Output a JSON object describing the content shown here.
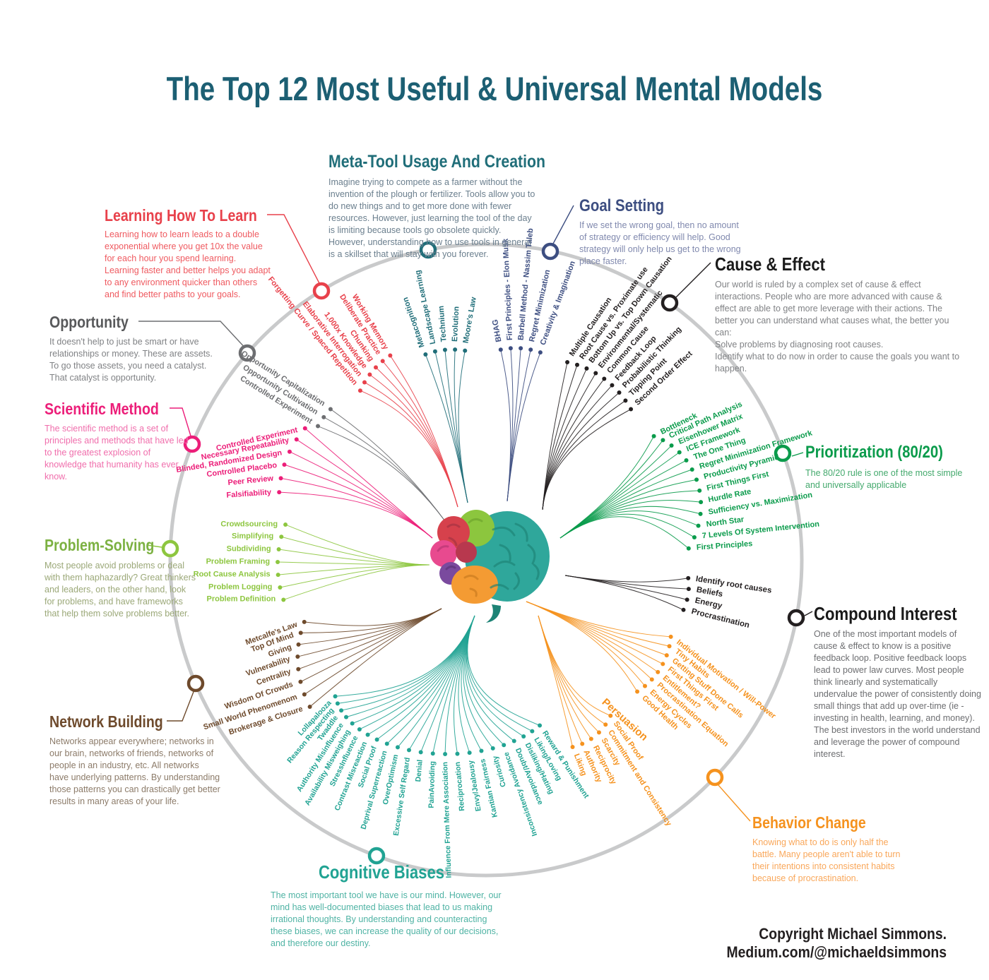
{
  "title": "The Top 12 Most Useful & Universal Mental Models",
  "copyright": "Copyright Michael Simmons. Medium.com/@michaeldsimmons",
  "categories": [
    {
      "id": "learning",
      "title": "Learning How To Learn",
      "color": "#E8414B",
      "title_color": "#E8414B",
      "desc_color": "#EF5A60",
      "description": "Learning how to learn leads to a double exponential where you get 10x the value for each hour you spend learning. Learning faster and better helps you adapt to any environment quicker than others and find better paths to your goals.",
      "items": [
        "Forgetting Curve / Spaced Repetition",
        "Elaborative Interrogation",
        "1,000x Knowledge",
        "Chunking",
        "Deliberate Practice",
        "Working Memory"
      ]
    },
    {
      "id": "opportunity",
      "title": "Opportunity",
      "color": "#6D6E71",
      "title_color": "#58595B",
      "desc_color": "#808285",
      "description": "It doesn't help to just be smart or have relationships or money. These are assets. To go those assets, you need a catalyst. That catalyst is opportunity.",
      "items": [
        "Opportunity Capitalization",
        "Opportunity Cultivation",
        "Controlled Experiment"
      ]
    },
    {
      "id": "scientific",
      "title": "Scientific Method",
      "color": "#EC1E79",
      "title_color": "#EC1E79",
      "desc_color": "#F06EAC",
      "description": "The scientific method is a set of principles and methods that have led to the greatest explosion of knowledge that humanity has ever know.",
      "items": [
        "Controlled Experiment",
        "Necessary Repeatability",
        "Blinded, Randomized Design",
        "Controlled Placebo",
        "Peer Review",
        "Falsifiability"
      ]
    },
    {
      "id": "problem",
      "title": "Problem-Solving",
      "color": "#8DC63F",
      "title_color": "#7CB142",
      "desc_color": "#9BA878",
      "description": "Most people avoid problems or deal with them haphazardly? Great thinkers and leaders, on the other hand, look for problems, and have frameworks that help them solve problems better.",
      "items": [
        "Crowdsourcing",
        "Simplifying",
        "Subdividing",
        "Problem Framing",
        "Root Cause Analysis",
        "Problem Logging",
        "Problem Definition"
      ]
    },
    {
      "id": "network",
      "title": "Network Building",
      "color": "#6E4A2C",
      "title_color": "#6E4A2C",
      "desc_color": "#8C7B69",
      "description": "Networks appear everywhere; networks in our brain, networks of friends, networks of people in an industry, etc. All networks have underlying patterns. By understanding those patterns you can drastically get better results in many areas of your life.",
      "items": [
        "Metcalfe's Law",
        "Top Of Mind",
        "Giving",
        "Vulnerability",
        "Centrality",
        "Wisdom Of Crowds",
        "Small World Phenomenom",
        "Brokerage & Closure"
      ]
    },
    {
      "id": "cognitive",
      "title": "Cognitive Biases",
      "color": "#21A393",
      "title_color": "#21A393",
      "desc_color": "#4FB3A4",
      "description": "The most important tool we have is our mind. However, our mind has well-documented biases that lead to us making irrational thoughts. By understanding and counteracting these biases, we can increase the quality of our decisions, and therefore our destiny.",
      "items": [
        "Lollapalooza",
        "Reason Respecting",
        "Twaddle",
        "Authority Misinfluence",
        "Availability Misweighing",
        "StressInfluence",
        "Contrast Misreaction",
        "Social Proof",
        "Deprival Superreaction",
        "OverOptimism",
        "Excessive Self Regard",
        "Denial",
        "PainAvoiding",
        "Influence From Mere Association",
        "Reciprocation",
        "Envy/Jealousy",
        "Kantian Fairness",
        "Curiosity",
        "Inconsistency Avoidance",
        "Doubt/Avoidance",
        "Disliking/Hating",
        "Liking/Loving",
        "Reward & Punishment"
      ]
    },
    {
      "id": "behavior",
      "title": "Behavior Change",
      "color": "#F5921E",
      "title_color": "#F5921E",
      "desc_color": "#F9A75A",
      "description": "Knowing what to do is only half the battle. Many people aren't able to turn their intentions into consistent habits because of procrastination.",
      "items": [
        "Individual Motivation / Will-Power",
        "Tiny Habits",
        "Getting Stuff Done Calls",
        "First Things First",
        "Entitlement?",
        "Procrastination Equation",
        "Energy Cycles",
        "Good Health"
      ],
      "subgroup": {
        "label": "Persuasion",
        "items": [
          "Social Proof",
          "Commitment and Consistency",
          "Scarcity",
          "Reciprocity",
          "Authority",
          "Liking"
        ]
      }
    },
    {
      "id": "compound",
      "title": "Compound Interest",
      "color": "#231F20",
      "title_color": "#1A1A1A",
      "desc_color": "#6D6E71",
      "description": "One of the most important models of cause & effect to know is a positive feedback loop. Positive feedback loops lead to power law curves. Most people think linearly and systematically undervalue the power of consistently doing small things that add up over-time (ie - investing in health, learning, and money). The best investors in the world understand and leverage the power of compound interest.",
      "items": [
        "Identify root causes",
        "Beliefs",
        "Energy",
        "Procrastination"
      ]
    },
    {
      "id": "prioritization",
      "title": "Prioritization (80/20)",
      "color": "#0A9B4B",
      "title_color": "#0A9B4B",
      "desc_color": "#44A96D",
      "description": "The 80/20 rule is one of the most simple and universally applicable",
      "items": [
        "Bottleneck",
        "Critical Path Analysis",
        "Eisenhower Matrix",
        "ICE Framework",
        "The One Thing",
        "Regret Minimization Framework",
        "Productivity Pyramid",
        "First Things First",
        "Hurdle Rate",
        "Sufficiency vs. Maximization",
        "North Star",
        "7 Levels Of System Intervention",
        "First Principles"
      ]
    },
    {
      "id": "cause",
      "title": "Cause & Effect",
      "color": "#231F20",
      "title_color": "#1A1A1A",
      "desc_color": "#808285",
      "description": "Our world is ruled by a complex set of cause & effect interactions. People who are more advanced with cause & effect are able to get more leverage with their actions. The better you can understand what causes what, the better you can:\nSolve problems by diagnosing root causes.\nIdentify what to do now in order to cause the goals you want to happen.",
      "items": [
        "Multiple Causation",
        "Root Cause vs. Proximate use",
        "Bottom Up vs. Top Down Causation",
        "Environmental/Systematic",
        "Common Cause",
        "Feedback Loop",
        "Probabilistic Thinking",
        "Tipping Point",
        "Second Order Effect"
      ]
    },
    {
      "id": "goal",
      "title": "Goal Setting",
      "color": "#3D4E81",
      "title_color": "#3D4E81",
      "desc_color": "#8089AE",
      "description": "If we set the wrong goal, then no amount of strategy or efficiency will help. Good strategy will only help us get to the wrong place faster.",
      "items": [
        "BHAG",
        "First Principles - Elon Musk",
        "Barbell Method - Nassim Taleb",
        "Regret Minimization",
        "Creativity & Imagination"
      ]
    },
    {
      "id": "meta_tool",
      "title": "Meta-Tool Usage And Creation",
      "color": "#206E79",
      "title_color": "#206E79",
      "desc_color": "#6B7F8E",
      "description": "Imagine trying to compete as a farmer without the invention of the plough or fertilizer. Tools allow you to do new things and to get more done with fewer resources. However, just learning the tool of the day is limiting because tools go obsolete quickly. However, understanding how to use tools in general is a skillset that will stay with you forever.",
      "items": [
        "Metacognition",
        "Landscape Learning",
        "Technium",
        "Evolution",
        "Moore's Law"
      ]
    }
  ]
}
